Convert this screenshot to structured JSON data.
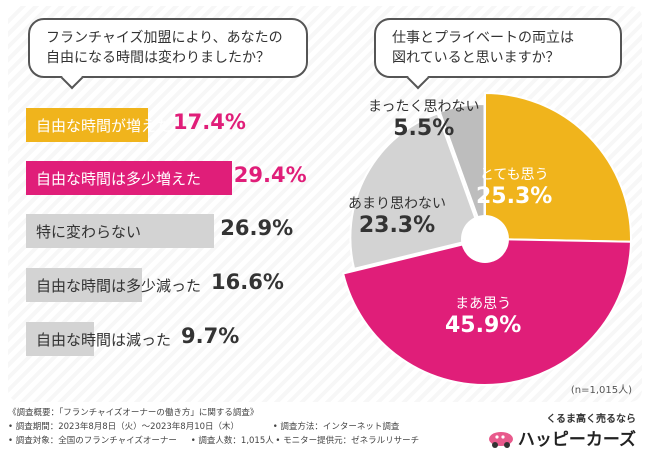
{
  "colors": {
    "yellow": "#f0b41c",
    "pink": "#e01e79",
    "gray": "#d3d3d3",
    "gray_dark": "#bdbdbd",
    "text_pink": "#e01e79",
    "text_gray": "#333333"
  },
  "left_question": {
    "line1": "フランチャイズ加盟により、あなたの",
    "line2": "自由になる時間は変わりましたか？"
  },
  "right_question": {
    "line1": "仕事とプライベートの両立は",
    "line2": "図れていると思いますか？"
  },
  "chart_data": [
    {
      "type": "bar",
      "orientation": "horizontal",
      "title": "フランチャイズ加盟により、あなたの自由になる時間は変わりましたか？",
      "categories": [
        "自由な時間が増えた",
        "自由な時間は多少増えた",
        "特に変わらない",
        "自由な時間は多少減った",
        "自由な時間は減った"
      ],
      "values": [
        17.4,
        29.4,
        26.9,
        16.6,
        9.7
      ],
      "value_labels": [
        "17.4%",
        "29.4%",
        "26.9%",
        "16.6%",
        "9.7%"
      ],
      "unit": "%"
    },
    {
      "type": "pie",
      "title": "仕事とプライベートの両立は図れていると思いますか？",
      "categories": [
        "とても思う",
        "まあ思う",
        "あまり思わない",
        "まったく思わない"
      ],
      "values": [
        25.3,
        45.9,
        23.3,
        5.5
      ],
      "value_labels": [
        "25.3%",
        "45.9%",
        "23.3%",
        "5.5%"
      ],
      "note": "(n=1,015人)"
    }
  ],
  "footer": {
    "overview": "《調査概要：「フランチャイズオーナーの働き方」に関する調査》",
    "period": "• 調査期間：2023年8月8日（火）〜2023年8月10日（木）",
    "method": "• 調査方法：インターネット調査",
    "target": "• 調査対象：全国のフランチャイズオーナー",
    "count": "• 調査人数：1,015人",
    "monitor": "• モニター提供元：ゼネラルリサーチ"
  },
  "logo": {
    "tagline": "くるま高く売るなら",
    "brand": "ハッピーカーズ"
  }
}
